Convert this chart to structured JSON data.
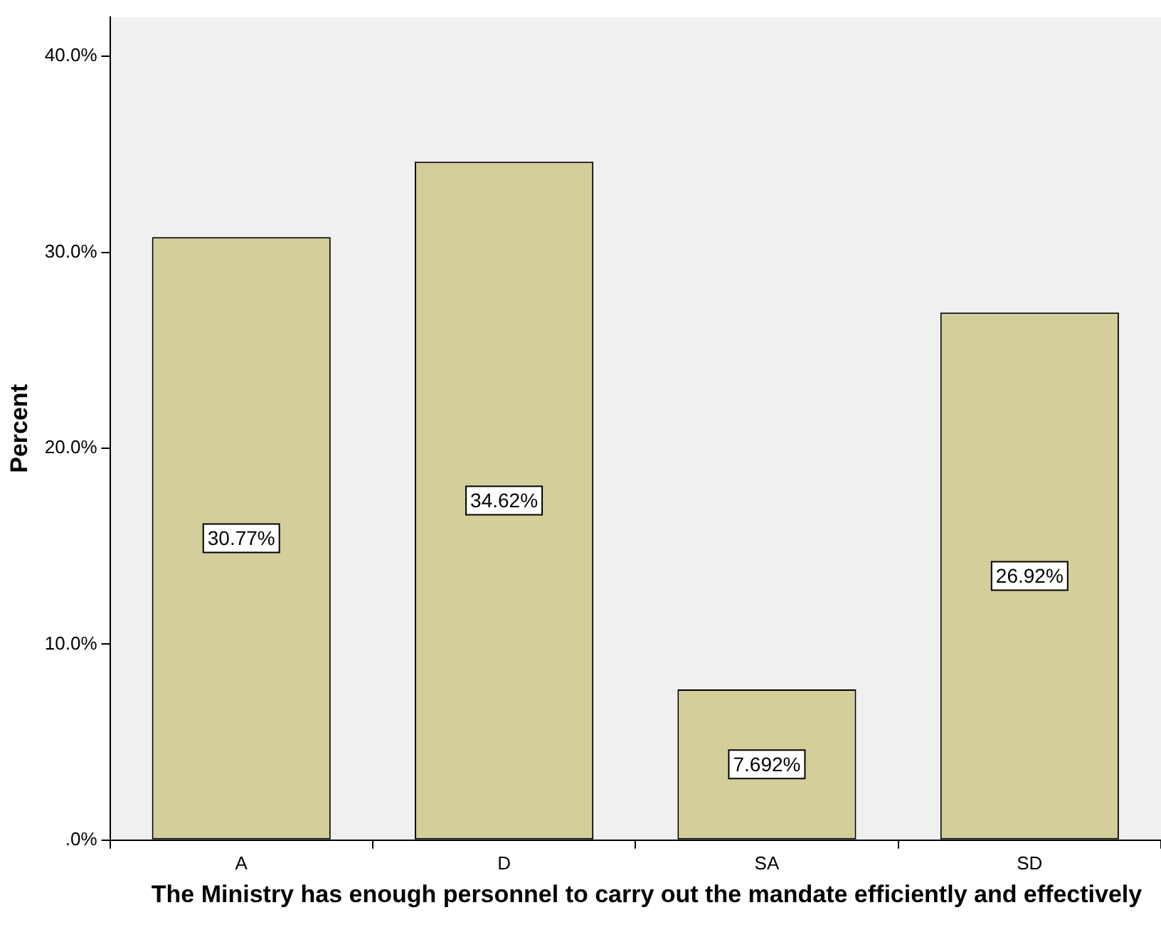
{
  "chart_data": {
    "type": "bar",
    "xlabel": "The Ministry has enough personnel to carry out the mandate efficiently and effectively",
    "ylabel": "Percent",
    "categories": [
      "A",
      "D",
      "SA",
      "SD"
    ],
    "values": [
      30.77,
      34.62,
      7.692,
      26.92
    ],
    "value_labels": [
      "30.77%",
      "34.62%",
      "7.692%",
      "26.92%"
    ],
    "color": "#d3ce9a",
    "ylim": [
      0,
      42
    ],
    "yticks": [
      {
        "value": 0,
        "label": ".0%"
      },
      {
        "value": 10,
        "label": "10.0%"
      },
      {
        "value": 20,
        "label": "20.0%"
      },
      {
        "value": 30,
        "label": "30.0%"
      },
      {
        "value": 40,
        "label": "40.0%"
      }
    ],
    "grid": false,
    "legend": false
  }
}
